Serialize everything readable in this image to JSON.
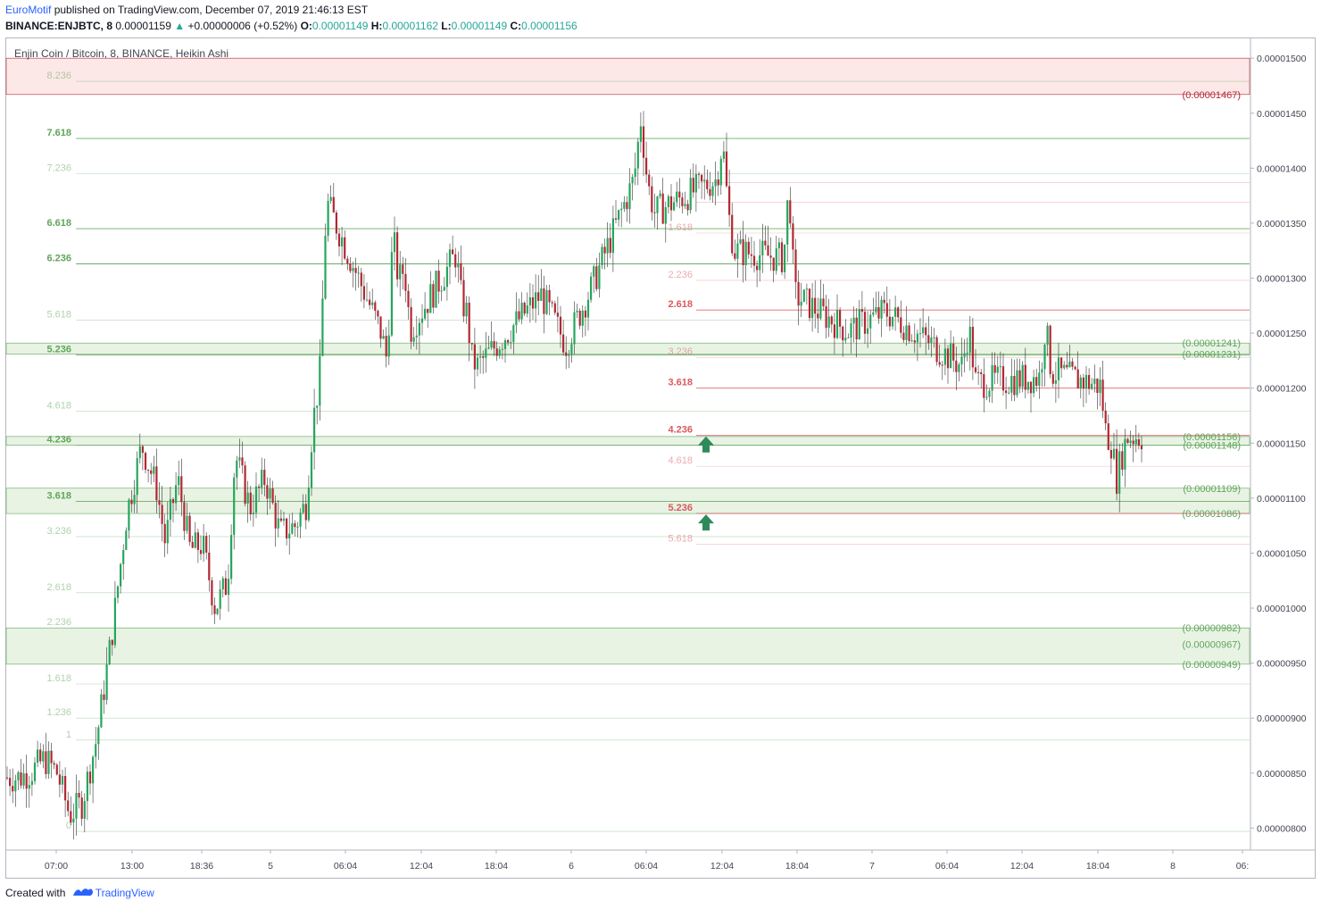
{
  "header": {
    "author": "EuroMotif",
    "published": " published on TradingView.com, December 07, 2019 21:46:13 EST",
    "symbol": "BINANCE:ENJBTC, 8",
    "last": "0.00001159",
    "change_arrow": "▲",
    "change": "+0.00000006 (+0.52%)",
    "o_label": "O:",
    "o": "0.00001149",
    "h_label": "H:",
    "h": "0.00001162",
    "l_label": "L:",
    "l": "0.00001149",
    "c_label": "C:",
    "c": "0.00001156"
  },
  "footer": {
    "created_with": "Created with",
    "brand": "TradingView"
  },
  "chart_data": {
    "type": "candlestick",
    "title": "Enjin Coin / Bitcoin, 8, BINANCE, Heikin Ashi",
    "style": "Heikin Ashi",
    "x_tick_labels": [
      "07:00",
      "13:00",
      "18:36",
      "5",
      "06:04",
      "12:04",
      "18:04",
      "6",
      "06:04",
      "12:04",
      "18:04",
      "7",
      "06:04",
      "12:04",
      "18:04",
      "8",
      "06:"
    ],
    "y_tick_labels": [
      "0.00001500",
      "0.00001450",
      "0.00001400",
      "0.00001350",
      "0.00001300",
      "0.00001250",
      "0.00001200",
      "0.00001150",
      "0.00001100",
      "0.00001050",
      "0.00001000",
      "0.00000950",
      "0.00000900",
      "0.00000850",
      "0.00000800"
    ],
    "ylim": [
      7.8e-06,
      1.518e-05
    ],
    "candle_path": [
      {
        "x": "07:00",
        "price": 8.46e-06
      },
      {
        "x": "07:00",
        "price": 8.52e-06
      },
      {
        "x": "07:00",
        "price": 8.63e-06
      },
      {
        "x": "07:00",
        "price": 8.5e-06
      },
      {
        "x": "07:00",
        "price": 8.12e-06
      },
      {
        "x": "07:00",
        "price": 8.23e-06
      },
      {
        "x": "13:00",
        "price": 8.82e-06
      },
      {
        "x": "13:00",
        "price": 9.75e-06
      },
      {
        "x": "13:00",
        "price": 1.086e-05
      },
      {
        "x": "13:00",
        "price": 1.148e-05
      },
      {
        "x": "13:00",
        "price": 1.109e-05
      },
      {
        "x": "18:36",
        "price": 1.06e-05
      },
      {
        "x": "18:36",
        "price": 1.118e-05
      },
      {
        "x": "18:36",
        "price": 1.053e-05
      },
      {
        "x": "18:36",
        "price": 1.058e-05
      },
      {
        "x": "18:36",
        "price": 1e-05
      },
      {
        "x": "18:36",
        "price": 1.024e-05
      },
      {
        "x": "5",
        "price": 1.14e-05
      },
      {
        "x": "5",
        "price": 1.091e-05
      },
      {
        "x": "5",
        "price": 1.118e-05
      },
      {
        "x": "5",
        "price": 1.068e-05
      },
      {
        "x": "5",
        "price": 1.075e-05
      },
      {
        "x": "06:04",
        "price": 1.095e-05
      },
      {
        "x": "06:04",
        "price": 1.168e-05
      },
      {
        "x": "06:04",
        "price": 1.21e-05
      },
      {
        "x": "06:04",
        "price": 1.37e-05
      },
      {
        "x": "12:04",
        "price": 1.25e-05
      },
      {
        "x": "12:04",
        "price": 1.225e-05
      },
      {
        "x": "12:04",
        "price": 1.34e-05
      },
      {
        "x": "12:04",
        "price": 1.297e-05
      },
      {
        "x": "12:04",
        "price": 1.31e-05
      },
      {
        "x": "12:04",
        "price": 1.253e-05
      },
      {
        "x": "18:04",
        "price": 1.322e-05
      },
      {
        "x": "18:04",
        "price": 1.28e-05
      },
      {
        "x": "18:04",
        "price": 1.268e-05
      },
      {
        "x": "18:04",
        "price": 1.225e-05
      },
      {
        "x": "18:04",
        "price": 1.22e-05
      },
      {
        "x": "6",
        "price": 1.285e-05
      },
      {
        "x": "6",
        "price": 1.24e-05
      },
      {
        "x": "6",
        "price": 1.29e-05
      },
      {
        "x": "06:04",
        "price": 1.39e-05
      },
      {
        "x": "06:04",
        "price": 1.445e-05
      },
      {
        "x": "06:04",
        "price": 1.385e-05
      },
      {
        "x": "06:04",
        "price": 1.36e-05
      },
      {
        "x": "12:04",
        "price": 1.39e-05
      },
      {
        "x": "12:04",
        "price": 1.425e-05
      },
      {
        "x": "12:04",
        "price": 1.36e-05
      },
      {
        "x": "12:04",
        "price": 1.325e-05
      },
      {
        "x": "18:04",
        "price": 1.318e-05
      },
      {
        "x": "18:04",
        "price": 1.385e-05
      },
      {
        "x": "18:04",
        "price": 1.285e-05
      },
      {
        "x": "7",
        "price": 1.252e-05
      },
      {
        "x": "7",
        "price": 1.27e-05
      },
      {
        "x": "06:04",
        "price": 1.22e-05
      },
      {
        "x": "06:04",
        "price": 1.255e-05
      },
      {
        "x": "06:04",
        "price": 1.205e-05
      },
      {
        "x": "12:04",
        "price": 1.21e-05
      },
      {
        "x": "12:04",
        "price": 1.258e-05
      },
      {
        "x": "12:04",
        "price": 1.215e-05
      },
      {
        "x": "18:04",
        "price": 1.202e-05
      },
      {
        "x": "18:04",
        "price": 1.16e-05
      },
      {
        "x": "18:04",
        "price": 1.15e-05
      },
      {
        "x": "18:04",
        "price": 1.118e-05
      },
      {
        "x": "18:04",
        "price": 1.14e-05
      },
      {
        "x": "18:04",
        "price": 1.156e-05
      }
    ],
    "fib_levels_green": [
      {
        "label": "8.236",
        "price": 1.479e-05
      },
      {
        "label": "7.618",
        "price": 1.427e-05
      },
      {
        "label": "7.236",
        "price": 1.395e-05
      },
      {
        "label": "6.618",
        "price": 1.345e-05
      },
      {
        "label": "6.236",
        "price": 1.313e-05
      },
      {
        "label": "5.618",
        "price": 1.262e-05
      },
      {
        "label": "5.236",
        "price": 1.23e-05
      },
      {
        "label": "4.618",
        "price": 1.179e-05
      },
      {
        "label": "4.236",
        "price": 1.148e-05
      },
      {
        "label": "3.618",
        "price": 1.097e-05
      },
      {
        "label": "3.236",
        "price": 1.065e-05
      },
      {
        "label": "2.618",
        "price": 1.014e-05
      },
      {
        "label": "2.236",
        "price": 9.82e-06
      },
      {
        "label": "1.618",
        "price": 9.31e-06
      },
      {
        "label": "1.236",
        "price": 9e-06
      },
      {
        "label": "1",
        "price": 8.8e-06
      },
      {
        "label": "0",
        "price": 7.97e-06
      }
    ],
    "fib_levels_red": [
      {
        "label": "",
        "price": 1.387e-05
      },
      {
        "label": "",
        "price": 1.369e-05
      },
      {
        "label": "1.618",
        "price": 1.341e-05
      },
      {
        "label": "2.236",
        "price": 1.298e-05
      },
      {
        "label": "2.618",
        "price": 1.271e-05
      },
      {
        "label": "3.236",
        "price": 1.228e-05
      },
      {
        "label": "3.618",
        "price": 1.2e-05
      },
      {
        "label": "4.236",
        "price": 1.157e-05
      },
      {
        "label": "4.618",
        "price": 1.129e-05
      },
      {
        "label": "5.236",
        "price": 1.086e-05
      },
      {
        "label": "5.618",
        "price": 1.058e-05
      }
    ],
    "zones": [
      {
        "color": "red",
        "price_top": 1.5e-05,
        "price_bottom": 1.467e-05
      },
      {
        "color": "green",
        "price_top": 1.241e-05,
        "price_bottom": 1.231e-05
      },
      {
        "color": "green",
        "price_top": 1.156e-05,
        "price_bottom": 1.148e-05
      },
      {
        "color": "green",
        "price_top": 1.109e-05,
        "price_bottom": 1.086e-05
      },
      {
        "color": "green",
        "price_top": 9.82e-06,
        "price_bottom": 9.49e-06
      }
    ],
    "right_price_labels": [
      {
        "text": "(0.00001467)",
        "price": 1.467e-05,
        "color": "red"
      },
      {
        "text": "(0.00001241)",
        "price": 1.241e-05,
        "color": "green"
      },
      {
        "text": "(0.00001231)",
        "price": 1.231e-05,
        "color": "green"
      },
      {
        "text": "(0.00001156)",
        "price": 1.156e-05,
        "color": "green"
      },
      {
        "text": "(0.00001148)",
        "price": 1.148e-05,
        "color": "green"
      },
      {
        "text": "(0.00001109)",
        "price": 1.109e-05,
        "color": "green"
      },
      {
        "text": "(0.00001086)",
        "price": 1.086e-05,
        "color": "green"
      },
      {
        "text": "(0.00000982)",
        "price": 9.82e-06,
        "color": "green"
      },
      {
        "text": "(0.00000967)",
        "price": 9.67e-06,
        "color": "green"
      },
      {
        "text": "(0.00000949)",
        "price": 9.49e-06,
        "color": "green"
      }
    ],
    "arrows": [
      {
        "direction": "up",
        "price": 1.148e-05
      },
      {
        "direction": "up",
        "price": 1.077e-05
      }
    ],
    "colors": {
      "up": "#26a65b",
      "down": "#b22833",
      "fib_green": "#5fa55a",
      "fib_red": "#d9595e",
      "zone_green": "#e8f3e4",
      "zone_red": "#fde8e8",
      "arrow": "#2f8a5b",
      "axis_text": "#434651"
    },
    "grid": false
  }
}
